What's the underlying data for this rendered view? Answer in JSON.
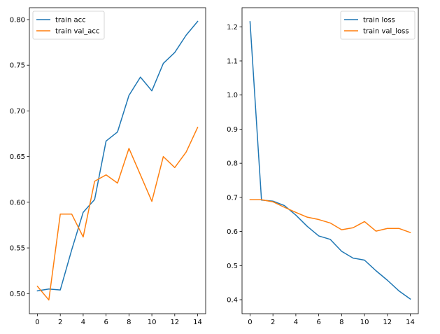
{
  "chart_data": [
    {
      "type": "line",
      "x": [
        0,
        1,
        2,
        3,
        4,
        5,
        6,
        7,
        8,
        9,
        10,
        11,
        12,
        13,
        14
      ],
      "series": [
        {
          "name": "train acc",
          "color": "#1f77b4",
          "values": [
            0.503,
            0.505,
            0.504,
            0.548,
            0.589,
            0.603,
            0.667,
            0.677,
            0.717,
            0.737,
            0.722,
            0.752,
            0.764,
            0.783,
            0.798
          ]
        },
        {
          "name": "train val_acc",
          "color": "#ff7f0e",
          "values": [
            0.508,
            0.493,
            0.587,
            0.587,
            0.562,
            0.623,
            0.63,
            0.621,
            0.659,
            0.63,
            0.601,
            0.65,
            0.638,
            0.655,
            0.682
          ]
        }
      ],
      "xticks": [
        0,
        2,
        4,
        6,
        8,
        10,
        12,
        14
      ],
      "yticks": [
        0.5,
        0.55,
        0.6,
        0.65,
        0.7,
        0.75,
        0.8
      ],
      "ytick_labels": [
        "0.50",
        "0.55",
        "0.60",
        "0.65",
        "0.70",
        "0.75",
        "0.80"
      ],
      "xlim": [
        -0.7,
        14.7
      ],
      "ylim": [
        0.478,
        0.813
      ],
      "legend": "top-left",
      "grid": false
    },
    {
      "type": "line",
      "x": [
        0,
        1,
        2,
        3,
        4,
        5,
        6,
        7,
        8,
        9,
        10,
        11,
        12,
        13,
        14
      ],
      "series": [
        {
          "name": "train loss",
          "color": "#1f77b4",
          "values": [
            1.215,
            0.692,
            0.689,
            0.676,
            0.648,
            0.615,
            0.587,
            0.577,
            0.542,
            0.522,
            0.516,
            0.485,
            0.457,
            0.426,
            0.402
          ]
        },
        {
          "name": "train val_loss",
          "color": "#ff7f0e",
          "values": [
            0.693,
            0.693,
            0.687,
            0.671,
            0.656,
            0.642,
            0.635,
            0.625,
            0.605,
            0.611,
            0.629,
            0.601,
            0.609,
            0.609,
            0.597
          ]
        }
      ],
      "xticks": [
        0,
        2,
        4,
        6,
        8,
        10,
        12,
        14
      ],
      "yticks": [
        0.4,
        0.5,
        0.6,
        0.7,
        0.8,
        0.9,
        1.0,
        1.1,
        1.2
      ],
      "ytick_labels": [
        "0.4",
        "0.5",
        "0.6",
        "0.7",
        "0.8",
        "0.9",
        "1.0",
        "1.1",
        "1.2"
      ],
      "xlim": [
        -0.7,
        14.7
      ],
      "ylim": [
        0.359,
        1.256
      ],
      "legend": "top-right",
      "grid": false
    }
  ]
}
